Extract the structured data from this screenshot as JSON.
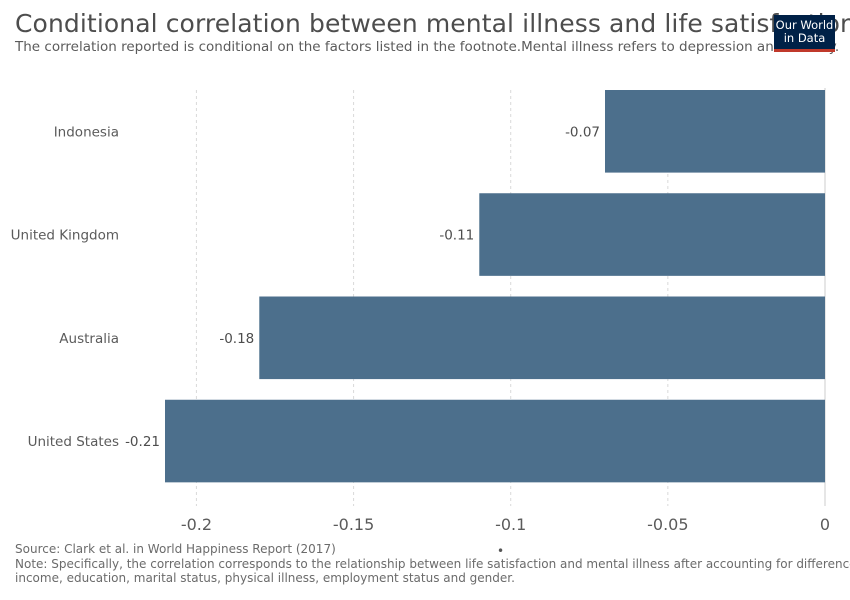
{
  "header": {
    "title": "Conditional correlation between mental illness and life satisfaction",
    "subtitle": "The correlation reported is conditional on the factors listed in the footnote.Mental illness refers to depression and anxiety."
  },
  "logo": {
    "line1": "Our World",
    "line2": "in Data",
    "bg": "#002147",
    "accent": "#c0392b"
  },
  "chart_data": {
    "type": "bar",
    "orientation": "horizontal",
    "categories": [
      "Indonesia",
      "United Kingdom",
      "Australia",
      "United States"
    ],
    "values": [
      -0.07,
      -0.11,
      -0.18,
      -0.21
    ],
    "value_labels": [
      "-0.07",
      "-0.11",
      "-0.18",
      "-0.21"
    ],
    "xlim": [
      -0.21,
      0
    ],
    "xticks": [
      -0.2,
      -0.15,
      -0.1,
      -0.05,
      0
    ],
    "xtick_labels": [
      "-0.2",
      "-0.15",
      "-0.1",
      "-0.05",
      "0"
    ],
    "bar_color": "#4c6f8c",
    "grid": "vertical dashed"
  },
  "footer": {
    "source": "Source: Clark et al. in World Happiness Report (2017)",
    "note_line1": "Note: Specifically, the correlation corresponds to the relationship between life satisfaction and mental illness after accounting for differences in",
    "note_line2": "income, education, marital status, physical illness, employment status and gender.",
    "dot": "•"
  }
}
